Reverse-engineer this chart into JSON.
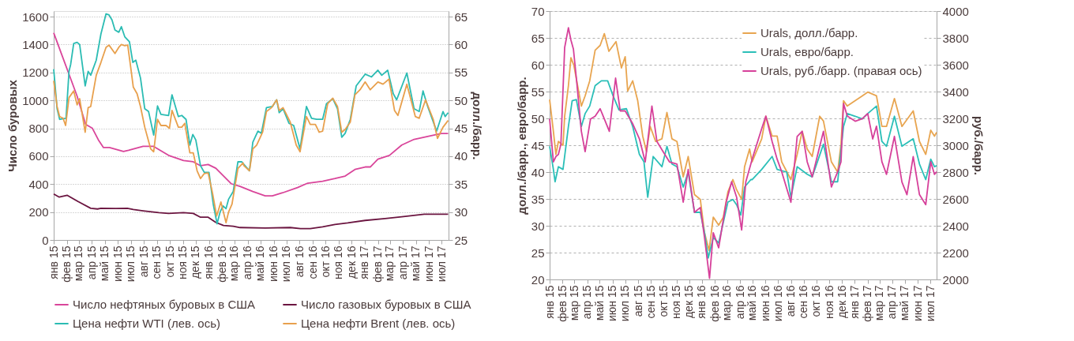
{
  "chart_data": [
    {
      "type": "line",
      "ylabel": "Число буровых",
      "y2label": "долл./барр.",
      "xlim": [
        "2015-01-01",
        "2017-07-17"
      ],
      "ylim": [
        0,
        1640
      ],
      "y2lim": [
        25,
        66
      ],
      "xticks": [
        {
          "value": "2015-01",
          "label": "янв 15"
        },
        {
          "value": "2015-02",
          "label": "фев 15"
        },
        {
          "value": "2015-03",
          "label": "мар 15"
        },
        {
          "value": "2015-04",
          "label": "апр 15"
        },
        {
          "value": "2015-05",
          "label": "май 15"
        },
        {
          "value": "2015-06",
          "label": "июн 15"
        },
        {
          "value": "2015-07",
          "label": "июл 15"
        },
        {
          "value": "2015-08",
          "label": "авг 15"
        },
        {
          "value": "2015-09",
          "label": "сен 15"
        },
        {
          "value": "2015-10",
          "label": "окт 15"
        },
        {
          "value": "2015-11",
          "label": "ноя 15"
        },
        {
          "value": "2015-12",
          "label": "дек 15"
        },
        {
          "value": "2016-01",
          "label": "янв 16"
        },
        {
          "value": "2016-02",
          "label": "фев 16"
        },
        {
          "value": "2016-03",
          "label": "мар 16"
        },
        {
          "value": "2016-04",
          "label": "апр 16"
        },
        {
          "value": "2016-05",
          "label": "май 16"
        },
        {
          "value": "2016-06",
          "label": "июн 16"
        },
        {
          "value": "2016-07",
          "label": "июл 16"
        },
        {
          "value": "2016-08",
          "label": "авг 16"
        },
        {
          "value": "2016-09",
          "label": "сен 16"
        },
        {
          "value": "2016-10",
          "label": "окт 16"
        },
        {
          "value": "2016-11",
          "label": "ноя 16"
        },
        {
          "value": "2016-12",
          "label": "дек 16"
        },
        {
          "value": "2017-01",
          "label": "янв 17"
        },
        {
          "value": "2017-02",
          "label": "фев 17"
        },
        {
          "value": "2017-03",
          "label": "мар 17"
        },
        {
          "value": "2017-04",
          "label": "апр 17"
        },
        {
          "value": "2017-05",
          "label": "май 17"
        },
        {
          "value": "2017-06",
          "label": "июн 17"
        },
        {
          "value": "2017-07",
          "label": "июл 17"
        }
      ],
      "yticks": [
        0,
        200,
        400,
        600,
        800,
        1000,
        1200,
        1400,
        1600
      ],
      "y2ticks": [
        25,
        30,
        35,
        40,
        45,
        50,
        55,
        60,
        65
      ],
      "grid": "y",
      "legend": "bottom",
      "line_style": "solid",
      "marker": "none",
      "series": [
        {
          "name": "Число нефтяных буровых в США",
          "color": "#d9459a",
          "x": [
            "2015-01-01",
            "2015-01-20",
            "2015-02-07",
            "2015-02-25",
            "2015-03-17",
            "2015-04-02",
            "2015-04-16",
            "2015-04-28",
            "2015-05-12",
            "2015-06-14",
            "2015-06-26",
            "2015-07-30",
            "2015-08-23",
            "2015-09-28",
            "2015-11-02",
            "2015-11-25",
            "2015-12-12",
            "2015-12-30",
            "2016-01-17",
            "2016-02-10",
            "2016-02-22",
            "2016-03-14",
            "2016-04-13",
            "2016-05-12",
            "2016-05-29",
            "2016-06-22",
            "2016-07-27",
            "2016-08-20",
            "2016-09-24",
            "2016-10-23",
            "2016-11-16",
            "2016-12-09",
            "2017-01-02",
            "2017-01-14",
            "2017-02-01",
            "2017-02-28",
            "2017-03-29",
            "2017-04-27",
            "2017-06-02",
            "2017-06-30",
            "2017-07-16"
          ],
          "values": [
            1484,
            1327,
            1179,
            1031,
            828,
            800,
            717,
            662,
            662,
            634,
            643,
            671,
            671,
            606,
            569,
            560,
            532,
            541,
            514,
            440,
            403,
            384,
            347,
            316,
            316,
            338,
            375,
            407,
            421,
            440,
            458,
            505,
            523,
            523,
            579,
            606,
            680,
            721,
            745,
            763,
            763
          ]
        },
        {
          "name": "Число газовых буровых в США",
          "color": "#6b1540",
          "x": [
            "2015-01-01",
            "2015-01-14",
            "2015-02-02",
            "2015-02-28",
            "2015-03-29",
            "2015-04-14",
            "2015-04-22",
            "2015-05-27",
            "2015-06-23",
            "2015-07-07",
            "2015-07-30",
            "2015-09-05",
            "2015-09-28",
            "2015-11-02",
            "2015-11-25",
            "2015-12-12",
            "2015-12-30",
            "2016-01-17",
            "2016-02-04",
            "2016-02-27",
            "2016-03-14",
            "2016-05-12",
            "2016-07-10",
            "2016-08-03",
            "2016-08-26",
            "2016-09-24",
            "2016-10-23",
            "2016-11-22",
            "2017-01-02",
            "2017-02-18",
            "2017-03-29",
            "2017-05-21",
            "2017-07-16"
          ],
          "values": [
            329,
            307,
            320,
            274,
            227,
            222,
            227,
            226,
            227,
            218,
            209,
            196,
            190,
            196,
            190,
            163,
            163,
            126,
            104,
            98,
            89,
            85,
            89,
            81,
            81,
            94,
            111,
            122,
            140,
            153,
            166,
            185,
            185
          ]
        },
        {
          "name": "Цена нефти WTI (лев. ось)",
          "color": "#2bbcb3",
          "axis": "y2",
          "x": [
            "2015-01-01",
            "2015-01-09",
            "2015-01-15",
            "2015-01-30",
            "2015-02-06",
            "2015-02-10",
            "2015-02-17",
            "2015-02-25",
            "2015-03-03",
            "2015-03-16",
            "2015-03-23",
            "2015-03-29",
            "2015-04-11",
            "2015-04-22",
            "2015-05-04",
            "2015-05-11",
            "2015-05-18",
            "2015-05-25",
            "2015-06-03",
            "2015-06-09",
            "2015-06-17",
            "2015-06-28",
            "2015-07-06",
            "2015-07-13",
            "2015-07-24",
            "2015-08-03",
            "2015-08-12",
            "2015-08-24",
            "2015-09-02",
            "2015-09-10",
            "2015-09-28",
            "2015-10-06",
            "2015-10-21",
            "2015-10-29",
            "2015-11-08",
            "2015-11-17",
            "2015-11-24",
            "2015-12-01",
            "2015-12-12",
            "2015-12-21",
            "2016-01-01",
            "2016-01-11",
            "2016-01-20",
            "2016-01-27",
            "2016-02-03",
            "2016-02-10",
            "2016-02-16",
            "2016-02-27",
            "2016-03-09",
            "2016-03-18",
            "2016-04-05",
            "2016-04-13",
            "2016-04-25",
            "2016-05-03",
            "2016-05-15",
            "2016-05-29",
            "2016-06-08",
            "2016-06-14",
            "2016-06-23",
            "2016-07-07",
            "2016-07-18",
            "2016-08-02",
            "2016-08-17",
            "2016-08-29",
            "2016-09-10",
            "2016-09-24",
            "2016-10-03",
            "2016-10-18",
            "2016-10-29",
            "2016-11-08",
            "2016-11-16",
            "2016-11-28",
            "2016-12-12",
            "2017-01-02",
            "2017-01-17",
            "2017-02-01",
            "2017-02-10",
            "2017-02-24",
            "2017-03-09",
            "2017-03-17",
            "2017-04-10",
            "2017-04-27",
            "2017-05-09",
            "2017-05-18",
            "2017-05-29",
            "2017-06-19",
            "2017-07-04",
            "2017-07-09",
            "2017-07-16"
          ],
          "values": [
            55.6,
            48.5,
            46.6,
            46.8,
            55.2,
            56.5,
            60.2,
            60.4,
            60.0,
            52.6,
            55.2,
            54.5,
            57.2,
            61.9,
            65.5,
            65.3,
            64.4,
            62.6,
            62.2,
            63.2,
            61.4,
            60.5,
            56.8,
            57.2,
            54.0,
            48.5,
            48.0,
            43.8,
            49.0,
            47.5,
            47.3,
            51.0,
            47.1,
            47.3,
            46.6,
            42.0,
            43.9,
            42.9,
            38.3,
            37.1,
            37.1,
            31.4,
            27.9,
            30.0,
            31.1,
            30.6,
            32.3,
            33.7,
            39.0,
            39.0,
            37.4,
            42.5,
            44.5,
            44.1,
            48.7,
            48.9,
            50.1,
            47.8,
            48.5,
            45.9,
            45.5,
            41.3,
            48.9,
            46.8,
            46.6,
            46.6,
            49.4,
            50.3,
            48.5,
            43.4,
            44.1,
            46.6,
            52.6,
            54.7,
            54.2,
            55.4,
            54.5,
            55.4,
            51.2,
            50.1,
            54.9,
            48.5,
            48.0,
            51.7,
            48.9,
            44.5,
            48.0,
            47.1,
            47.8
          ]
        },
        {
          "name": "Цена нефти Brent (лев. ось)",
          "color": "#e8a04d",
          "axis": "y2",
          "x": [
            "2015-01-01",
            "2015-01-09",
            "2015-01-15",
            "2015-01-23",
            "2015-01-29",
            "2015-02-06",
            "2015-02-17",
            "2015-02-25",
            "2015-03-03",
            "2015-03-16",
            "2015-03-23",
            "2015-03-29",
            "2015-04-11",
            "2015-04-22",
            "2015-05-04",
            "2015-05-11",
            "2015-05-25",
            "2015-06-03",
            "2015-06-09",
            "2015-06-17",
            "2015-06-24",
            "2015-07-01",
            "2015-07-07",
            "2015-07-16",
            "2015-07-24",
            "2015-08-03",
            "2015-08-17",
            "2015-08-24",
            "2015-09-02",
            "2015-09-10",
            "2015-09-22",
            "2015-09-30",
            "2015-10-06",
            "2015-10-21",
            "2015-10-29",
            "2015-11-05",
            "2015-11-17",
            "2015-11-25",
            "2015-12-04",
            "2015-12-12",
            "2015-12-21",
            "2015-12-30",
            "2016-01-09",
            "2016-01-19",
            "2016-01-29",
            "2016-02-10",
            "2016-02-16",
            "2016-02-24",
            "2016-03-09",
            "2016-03-21",
            "2016-03-23",
            "2016-04-05",
            "2016-04-13",
            "2016-04-22",
            "2016-05-06",
            "2016-05-15",
            "2016-05-27",
            "2016-06-08",
            "2016-06-14",
            "2016-06-23",
            "2016-07-10",
            "2016-07-24",
            "2016-08-02",
            "2016-08-17",
            "2016-08-26",
            "2016-09-07",
            "2016-09-16",
            "2016-09-24",
            "2016-10-06",
            "2016-10-18",
            "2016-10-29",
            "2016-11-08",
            "2016-11-16",
            "2016-11-28",
            "2016-12-09",
            "2016-12-21",
            "2017-01-02",
            "2017-01-14",
            "2017-02-01",
            "2017-02-13",
            "2017-02-27",
            "2017-03-12",
            "2017-03-20",
            "2017-04-10",
            "2017-04-30",
            "2017-05-09",
            "2017-05-24",
            "2017-06-11",
            "2017-06-21",
            "2017-07-04",
            "2017-07-16"
          ],
          "values": [
            53.5,
            48.9,
            47.1,
            46.8,
            45.5,
            50.5,
            51.7,
            49.2,
            50.3,
            44.3,
            48.7,
            48.9,
            54.5,
            56.8,
            59.5,
            59.9,
            58.4,
            59.5,
            60.0,
            59.8,
            59.9,
            55.9,
            52.4,
            51.2,
            48.9,
            45.2,
            41.3,
            40.8,
            46.6,
            45.5,
            45.5,
            45.0,
            48.2,
            45.2,
            45.2,
            45.9,
            40.6,
            40.6,
            37.4,
            36.0,
            36.9,
            37.0,
            33.5,
            29.3,
            31.8,
            28.1,
            30.0,
            31.4,
            37.8,
            38.8,
            38.3,
            37.4,
            41.3,
            42.0,
            44.3,
            48.0,
            48.7,
            50.1,
            48.2,
            48.7,
            46.1,
            42.0,
            40.8,
            47.1,
            45.7,
            45.7,
            44.3,
            44.5,
            49.4,
            50.4,
            48.9,
            44.3,
            44.8,
            46.1,
            51.0,
            51.9,
            53.3,
            51.9,
            53.3,
            52.9,
            53.8,
            48.2,
            47.3,
            52.9,
            47.1,
            46.8,
            50.1,
            46.6,
            43.2,
            45.2,
            46.4
          ]
        }
      ]
    },
    {
      "type": "line",
      "ylabel": "долл./барр., евро/барр.",
      "y2label": "руб./барр.",
      "xlim": [
        "2015-01-01",
        "2017-07-16"
      ],
      "ylim": [
        20,
        70
      ],
      "y2lim": [
        2000,
        4000
      ],
      "xticks": [
        {
          "value": "2015-01",
          "label": "янв 15"
        },
        {
          "value": "2015-02",
          "label": "фев 15"
        },
        {
          "value": "2015-03",
          "label": "мар 15"
        },
        {
          "value": "2015-04",
          "label": "апр 15"
        },
        {
          "value": "2015-05",
          "label": "май 15"
        },
        {
          "value": "2015-06",
          "label": "июн 15"
        },
        {
          "value": "2015-07",
          "label": "июл 15"
        },
        {
          "value": "2015-08",
          "label": "авг 15"
        },
        {
          "value": "2015-09",
          "label": "сен 15"
        },
        {
          "value": "2015-10",
          "label": "окт 15"
        },
        {
          "value": "2015-11",
          "label": "ноя 15"
        },
        {
          "value": "2015-12",
          "label": "дек 15"
        },
        {
          "value": "2016-01",
          "label": "янв 16"
        },
        {
          "value": "2016-02",
          "label": "фев 16"
        },
        {
          "value": "2016-03",
          "label": "мар 16"
        },
        {
          "value": "2016-04",
          "label": "апр 16"
        },
        {
          "value": "2016-05",
          "label": "май 16"
        },
        {
          "value": "2016-06",
          "label": "июн 16"
        },
        {
          "value": "2016-07",
          "label": "июл 16"
        },
        {
          "value": "2016-08",
          "label": "авг 16"
        },
        {
          "value": "2016-09",
          "label": "сен 16"
        },
        {
          "value": "2016-10",
          "label": "окт 16"
        },
        {
          "value": "2016-11",
          "label": "ноя 16"
        },
        {
          "value": "2016-12",
          "label": "дек 16"
        },
        {
          "value": "2017-01",
          "label": "янв 17"
        },
        {
          "value": "2017-02",
          "label": "фев 17"
        },
        {
          "value": "2017-03",
          "label": "мар 17"
        },
        {
          "value": "2017-04",
          "label": "апр 17"
        },
        {
          "value": "2017-05",
          "label": "май 17"
        },
        {
          "value": "2017-06",
          "label": "июн 17"
        },
        {
          "value": "2017-07",
          "label": "июл 17"
        }
      ],
      "yticks": [
        20,
        25,
        30,
        35,
        40,
        45,
        50,
        55,
        60,
        65,
        70
      ],
      "y2ticks": [
        2000,
        2200,
        2400,
        2600,
        2800,
        3000,
        3200,
        3400,
        3600,
        3800,
        4000
      ],
      "grid": "y",
      "legend": "top right",
      "line_style": "solid",
      "marker": "none",
      "series": [
        {
          "name": "Urals, долл./барр.",
          "color": "#e8a550",
          "x": [
            "2015-01-01",
            "2015-01-10",
            "2015-01-16",
            "2015-01-22",
            "2015-02-02",
            "2015-02-06",
            "2015-02-15",
            "2015-02-21",
            "2015-02-28",
            "2015-03-09",
            "2015-03-18",
            "2015-03-27",
            "2015-04-07",
            "2015-04-20",
            "2015-05-02",
            "2015-05-12",
            "2015-05-23",
            "2015-06-09",
            "2015-06-22",
            "2015-07-01",
            "2015-07-07",
            "2015-07-19",
            "2015-07-31",
            "2015-08-12",
            "2015-08-21",
            "2015-08-30",
            "2015-09-12",
            "2015-09-27",
            "2015-10-09",
            "2015-10-21",
            "2015-11-02",
            "2015-11-17",
            "2015-11-29",
            "2015-12-14",
            "2015-12-28",
            "2016-01-07",
            "2016-01-18",
            "2016-01-28",
            "2016-02-10",
            "2016-02-21",
            "2016-03-03",
            "2016-03-15",
            "2016-03-24",
            "2016-04-05",
            "2016-04-12",
            "2016-04-24",
            "2016-04-30",
            "2016-05-23",
            "2016-06-02",
            "2016-06-17",
            "2016-06-29",
            "2016-07-10",
            "2016-08-01",
            "2016-08-16",
            "2016-08-28",
            "2016-09-09",
            "2016-09-21",
            "2016-10-09",
            "2016-10-18",
            "2016-11-06",
            "2016-11-21",
            "2016-11-29",
            "2016-12-05",
            "2016-12-14",
            "2017-01-02",
            "2017-01-19",
            "2017-02-01",
            "2017-02-22",
            "2017-03-07",
            "2017-03-18",
            "2017-04-06",
            "2017-04-24",
            "2017-05-21",
            "2017-06-05",
            "2017-06-20",
            "2017-07-02",
            "2017-07-11",
            "2017-07-16"
          ],
          "values": [
            53.5,
            47.6,
            43.3,
            45.7,
            45.0,
            50.4,
            56.1,
            61.3,
            59.9,
            56.1,
            52.3,
            54.2,
            57.0,
            62.7,
            63.6,
            65.8,
            62.5,
            64.3,
            59.4,
            61.5,
            55.1,
            57.0,
            53.3,
            46.7,
            43.8,
            48.5,
            45.7,
            46.2,
            51.1,
            46.2,
            45.7,
            39.1,
            42.9,
            35.8,
            34.9,
            28.7,
            25.4,
            31.6,
            30.1,
            31.6,
            36.3,
            38.6,
            36.7,
            34.9,
            41.0,
            44.3,
            41.9,
            46.2,
            50.4,
            46.7,
            46.7,
            41.9,
            38.6,
            43.3,
            47.6,
            44.3,
            42.9,
            50.4,
            49.5,
            41.9,
            40.0,
            45.2,
            53.3,
            52.3,
            53.3,
            54.2,
            54.9,
            54.2,
            48.5,
            48.5,
            53.7,
            48.5,
            51.4,
            45.7,
            43.3,
            47.8,
            46.7,
            47.4
          ]
        },
        {
          "name": "Urals, евро/барр.",
          "color": "#2bbfb8",
          "x": [
            "2015-01-01",
            "2015-01-10",
            "2015-01-14",
            "2015-01-22",
            "2015-02-02",
            "2015-02-09",
            "2015-02-15",
            "2015-02-24",
            "2015-03-06",
            "2015-03-18",
            "2015-03-27",
            "2015-04-07",
            "2015-04-20",
            "2015-05-05",
            "2015-05-20",
            "2015-06-02",
            "2015-06-16",
            "2015-07-04",
            "2015-07-19",
            "2015-08-04",
            "2015-08-15",
            "2015-08-24",
            "2015-09-06",
            "2015-09-27",
            "2015-10-09",
            "2015-10-21",
            "2015-11-02",
            "2015-11-17",
            "2015-11-29",
            "2015-12-14",
            "2015-12-28",
            "2016-01-07",
            "2016-01-16",
            "2016-01-28",
            "2016-02-10",
            "2016-02-21",
            "2016-03-03",
            "2016-03-15",
            "2016-03-24",
            "2016-04-03",
            "2016-04-12",
            "2016-04-27",
            "2016-04-30",
            "2016-05-23",
            "2016-06-17",
            "2016-06-29",
            "2016-07-22",
            "2016-08-01",
            "2016-08-16",
            "2016-09-09",
            "2016-09-21",
            "2016-10-18",
            "2016-11-06",
            "2016-11-21",
            "2016-12-05",
            "2016-12-14",
            "2017-01-02",
            "2017-01-19",
            "2017-02-01",
            "2017-02-22",
            "2017-03-07",
            "2017-03-18",
            "2017-04-06",
            "2017-04-24",
            "2017-05-21",
            "2017-06-05",
            "2017-06-20",
            "2017-07-02",
            "2017-07-11",
            "2017-07-16"
          ],
          "values": [
            44.8,
            40.5,
            38.2,
            41.0,
            40.5,
            44.8,
            48.5,
            53.3,
            53.5,
            48.5,
            50.9,
            52.3,
            56.1,
            57.0,
            57.0,
            54.2,
            51.6,
            51.8,
            48.5,
            43.3,
            41.9,
            35.3,
            42.9,
            41.0,
            44.8,
            41.5,
            41.0,
            37.2,
            40.0,
            32.5,
            32.5,
            28.7,
            24.0,
            27.8,
            26.8,
            30.6,
            34.4,
            34.9,
            33.9,
            32.0,
            37.2,
            38.6,
            38.6,
            40.5,
            42.9,
            40.5,
            40.0,
            35.3,
            41.0,
            39.6,
            39.1,
            45.2,
            38.2,
            38.2,
            48.5,
            50.9,
            50.4,
            49.9,
            50.9,
            52.3,
            45.7,
            44.8,
            50.4,
            44.8,
            46.2,
            41.5,
            38.6,
            42.4,
            41.0,
            41.2
          ]
        },
        {
          "name": "Urals, руб./барр. (правая ось)",
          "color": "#d6409a",
          "axis": "y2",
          "x": [
            "2015-01-01",
            "2015-01-10",
            "2015-01-16",
            "2015-01-22",
            "2015-01-28",
            "2015-02-06",
            "2015-02-15",
            "2015-02-21",
            "2015-02-27",
            "2015-03-06",
            "2015-03-18",
            "2015-03-27",
            "2015-04-09",
            "2015-04-20",
            "2015-05-02",
            "2015-05-12",
            "2015-05-24",
            "2015-06-08",
            "2015-06-19",
            "2015-07-01",
            "2015-07-19",
            "2015-08-04",
            "2015-08-18",
            "2015-09-03",
            "2015-09-15",
            "2015-09-30",
            "2015-10-15",
            "2015-11-02",
            "2015-11-17",
            "2015-11-29",
            "2015-12-14",
            "2015-12-28",
            "2016-01-07",
            "2016-01-19",
            "2016-01-28",
            "2016-02-10",
            "2016-02-21",
            "2016-02-28",
            "2016-03-12",
            "2016-03-24",
            "2016-04-05",
            "2016-04-15",
            "2016-04-27",
            "2016-04-30",
            "2016-05-23",
            "2016-06-02",
            "2016-06-17",
            "2016-06-29",
            "2016-07-10",
            "2016-08-01",
            "2016-08-16",
            "2016-08-28",
            "2016-09-09",
            "2016-09-21",
            "2016-10-09",
            "2016-10-18",
            "2016-11-06",
            "2016-11-21",
            "2016-11-29",
            "2016-12-05",
            "2016-12-14",
            "2017-01-02",
            "2017-01-19",
            "2017-02-01",
            "2017-02-13",
            "2017-02-22",
            "2017-03-07",
            "2017-03-18",
            "2017-04-06",
            "2017-04-24",
            "2017-05-06",
            "2017-05-21",
            "2017-06-05",
            "2017-06-20",
            "2017-07-02",
            "2017-07-11",
            "2017-07-16"
          ],
          "values": [
            3196,
            2876,
            2916,
            2932,
            3008,
            3728,
            3876,
            3784,
            3716,
            3500,
            3104,
            2952,
            3196,
            3216,
            3272,
            3196,
            3104,
            3500,
            3256,
            3256,
            3160,
            3048,
            2876,
            3292,
            3028,
            2952,
            2876,
            2860,
            2576,
            2820,
            2500,
            2536,
            2312,
            2008,
            2348,
            2236,
            2444,
            2576,
            2728,
            2612,
            2368,
            2728,
            2860,
            2896,
            3123,
            3217,
            3028,
            2896,
            2802,
            2575,
            3066,
            3104,
            2877,
            2764,
            2991,
            3104,
            2689,
            2802,
            2877,
            3311,
            3217,
            3179,
            3198,
            3236,
            3047,
            3142,
            2877,
            2783,
            3066,
            2726,
            2632,
            2915,
            2632,
            2557,
            2877,
            2783,
            2802
          ]
        }
      ]
    }
  ]
}
